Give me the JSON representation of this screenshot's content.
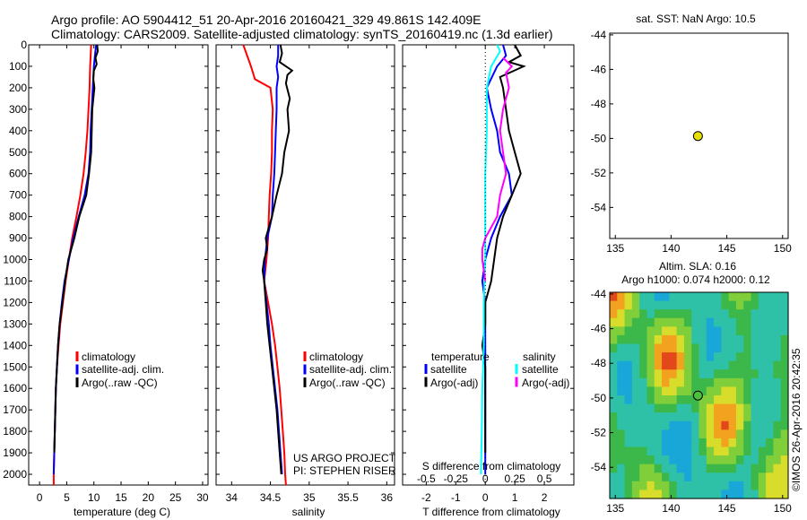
{
  "header": {
    "line1": "Argo profile: AO 5904412_51 20-Apr-2016 20160421_329 49.861S 142.409E",
    "line2": "Climatology: CARS2009. Satellite-adjusted climatology: synTS_20160419.nc (1.3d earlier)"
  },
  "colors": {
    "climatology": "#ff0000",
    "satellite": "#0000ff",
    "argo": "#000000",
    "sal_satellite": "#00ffff",
    "sal_argo": "#ff00ff",
    "argo_marker": "#e6e000"
  },
  "depth_ticks": [
    "0",
    "100",
    "200",
    "300",
    "400",
    "500",
    "600",
    "700",
    "800",
    "900",
    "1000",
    "1100",
    "1200",
    "1300",
    "1400",
    "1500",
    "1600",
    "1700",
    "1800",
    "1900",
    "2000"
  ],
  "chart_data": [
    {
      "type": "line",
      "panel": "temperature",
      "xlabel": "temperature (deg C)",
      "xlim": [
        -2,
        31
      ],
      "ylim": [
        2050,
        0
      ],
      "xticks": [
        "0",
        "5",
        "10",
        "15",
        "20",
        "25",
        "30"
      ],
      "legend": [
        "climatology",
        "satellite-adj. clim.",
        "Argo(..raw -QC)"
      ],
      "series": [
        {
          "name": "climatology",
          "color": "#ff0000",
          "points": [
            [
              9.5,
              0
            ],
            [
              9.4,
              50
            ],
            [
              9.3,
              100
            ],
            [
              9.2,
              200
            ],
            [
              9.0,
              300
            ],
            [
              8.8,
              400
            ],
            [
              8.5,
              500
            ],
            [
              8.1,
              600
            ],
            [
              7.5,
              700
            ],
            [
              6.8,
              800
            ],
            [
              6.0,
              900
            ],
            [
              5.4,
              1000
            ],
            [
              4.8,
              1100
            ],
            [
              4.3,
              1200
            ],
            [
              3.8,
              1300
            ],
            [
              3.5,
              1400
            ],
            [
              3.2,
              1500
            ],
            [
              3.0,
              1600
            ],
            [
              2.9,
              1700
            ],
            [
              2.8,
              1800
            ],
            [
              2.7,
              1900
            ],
            [
              2.6,
              2000
            ],
            [
              2.6,
              2050
            ]
          ]
        },
        {
          "name": "satellite-adj. clim.",
          "color": "#0000ff",
          "points": [
            [
              10.4,
              0
            ],
            [
              10.2,
              50
            ],
            [
              10.0,
              100
            ],
            [
              9.8,
              200
            ],
            [
              9.6,
              300
            ],
            [
              9.4,
              400
            ],
            [
              9.3,
              500
            ],
            [
              9.0,
              600
            ],
            [
              8.3,
              700
            ],
            [
              7.2,
              800
            ],
            [
              6.2,
              900
            ],
            [
              5.4,
              1000
            ],
            [
              4.6,
              1100
            ],
            [
              4.1,
              1200
            ],
            [
              3.7,
              1300
            ],
            [
              3.4,
              1400
            ],
            [
              3.2,
              1500
            ],
            [
              3.0,
              1600
            ],
            [
              2.9,
              1700
            ],
            [
              2.8,
              1800
            ],
            [
              2.7,
              1900
            ],
            [
              2.6,
              2000
            ]
          ]
        },
        {
          "name": "Argo(..raw -QC)",
          "color": "#000000",
          "points": [
            [
              10.6,
              0
            ],
            [
              10.7,
              30
            ],
            [
              10.3,
              60
            ],
            [
              10.5,
              90
            ],
            [
              10.0,
              120
            ],
            [
              9.9,
              160
            ],
            [
              10.1,
              200
            ],
            [
              9.7,
              300
            ],
            [
              9.6,
              400
            ],
            [
              9.5,
              500
            ],
            [
              9.1,
              600
            ],
            [
              8.6,
              700
            ],
            [
              7.3,
              800
            ],
            [
              6.4,
              900
            ],
            [
              5.3,
              1000
            ],
            [
              4.7,
              1100
            ],
            [
              4.2,
              1200
            ],
            [
              3.7,
              1300
            ],
            [
              3.4,
              1400
            ],
            [
              3.2,
              1500
            ],
            [
              3.0,
              1600
            ],
            [
              2.9,
              1700
            ],
            [
              2.8,
              1800
            ],
            [
              2.7,
              1900
            ]
          ]
        }
      ]
    },
    {
      "type": "line",
      "panel": "salinity",
      "xlabel": "salinity",
      "xlim": [
        33.8,
        36.1
      ],
      "ylim": [
        2050,
        0
      ],
      "xticks": [
        "34",
        "34.5",
        "35",
        "35.5",
        "36"
      ],
      "legend": [
        "climatology",
        "satellite-adj. clim.",
        "Argo(..raw -QC)"
      ],
      "annotation": [
        "US ARGO PROJECT",
        "PI: STEPHEN RISER"
      ],
      "series": [
        {
          "name": "climatology",
          "color": "#ff0000",
          "points": [
            [
              34.15,
              0
            ],
            [
              34.2,
              50
            ],
            [
              34.25,
              100
            ],
            [
              34.3,
              160
            ],
            [
              34.5,
              200
            ],
            [
              34.53,
              300
            ],
            [
              34.52,
              400
            ],
            [
              34.52,
              500
            ],
            [
              34.51,
              600
            ],
            [
              34.49,
              700
            ],
            [
              34.48,
              800
            ],
            [
              34.47,
              900
            ],
            [
              34.45,
              1000
            ],
            [
              34.42,
              1100
            ],
            [
              34.47,
              1200
            ],
            [
              34.52,
              1300
            ],
            [
              34.56,
              1400
            ],
            [
              34.59,
              1500
            ],
            [
              34.62,
              1600
            ],
            [
              34.64,
              1700
            ],
            [
              34.66,
              1800
            ],
            [
              34.68,
              1900
            ],
            [
              34.69,
              2000
            ],
            [
              34.7,
              2050
            ]
          ]
        },
        {
          "name": "satellite-adj. clim.",
          "color": "#0000ff",
          "points": [
            [
              34.6,
              0
            ],
            [
              34.6,
              50
            ],
            [
              34.58,
              100
            ],
            [
              34.6,
              150
            ],
            [
              34.58,
              200
            ],
            [
              34.58,
              300
            ],
            [
              34.57,
              400
            ],
            [
              34.56,
              500
            ],
            [
              34.55,
              600
            ],
            [
              34.53,
              700
            ],
            [
              34.52,
              800
            ],
            [
              34.46,
              900
            ],
            [
              34.43,
              1000
            ],
            [
              34.42,
              1100
            ],
            [
              34.45,
              1200
            ],
            [
              34.48,
              1300
            ],
            [
              34.5,
              1400
            ],
            [
              34.53,
              1500
            ],
            [
              34.56,
              1600
            ],
            [
              34.59,
              1700
            ],
            [
              34.61,
              1800
            ],
            [
              34.63,
              1900
            ],
            [
              34.65,
              2000
            ]
          ]
        },
        {
          "name": "Argo(..raw -QC)",
          "color": "#000000",
          "points": [
            [
              34.63,
              0
            ],
            [
              34.65,
              40
            ],
            [
              34.62,
              80
            ],
            [
              34.78,
              120
            ],
            [
              34.72,
              140
            ],
            [
              34.7,
              180
            ],
            [
              34.75,
              250
            ],
            [
              34.72,
              300
            ],
            [
              34.74,
              400
            ],
            [
              34.68,
              500
            ],
            [
              34.65,
              600
            ],
            [
              34.58,
              700
            ],
            [
              34.52,
              800
            ],
            [
              34.44,
              900
            ],
            [
              34.46,
              950
            ],
            [
              34.42,
              1000
            ],
            [
              34.4,
              1050
            ],
            [
              34.42,
              1100
            ],
            [
              34.44,
              1200
            ],
            [
              34.46,
              1300
            ],
            [
              34.49,
              1400
            ],
            [
              34.52,
              1500
            ],
            [
              34.55,
              1600
            ],
            [
              34.58,
              1700
            ],
            [
              34.6,
              1800
            ],
            [
              34.62,
              1900
            ],
            [
              34.64,
              2000
            ]
          ]
        }
      ]
    },
    {
      "type": "line",
      "panel": "difference",
      "xlabel": "T difference from climatology",
      "xlabel_top": "S difference from climatology",
      "xlim": [
        -2.8,
        3.0
      ],
      "ylim": [
        2050,
        0
      ],
      "xticks": [
        "-2",
        "-1",
        "0",
        "1",
        "2"
      ],
      "sticks": [
        "-0.5",
        "-0.25",
        "0",
        "0.25",
        "0.5"
      ],
      "legend_headers": [
        "temperature",
        "salinity"
      ],
      "legend_left": [
        "satellite",
        "Argo(-adj)"
      ],
      "legend_right": [
        "satellite",
        "Argo(-adj)"
      ],
      "series": [
        {
          "name": "T satellite",
          "color": "#0000ff",
          "points": [
            [
              0.6,
              0
            ],
            [
              0.7,
              50
            ],
            [
              0.4,
              100
            ],
            [
              0.05,
              200
            ],
            [
              0.2,
              300
            ],
            [
              0.4,
              400
            ],
            [
              0.5,
              500
            ],
            [
              0.8,
              600
            ],
            [
              0.9,
              700
            ],
            [
              0.5,
              800
            ],
            [
              0.2,
              900
            ],
            [
              0.0,
              1000
            ],
            [
              -0.1,
              1100
            ],
            [
              0.0,
              1200
            ],
            [
              0.0,
              1300
            ],
            [
              0.0,
              1400
            ],
            [
              0.0,
              1500
            ],
            [
              0.0,
              1600
            ],
            [
              0.0,
              1700
            ],
            [
              0.0,
              1800
            ],
            [
              0.0,
              1900
            ],
            [
              0.0,
              2000
            ]
          ]
        },
        {
          "name": "T Argo(-adj)",
          "color": "#000000",
          "points": [
            [
              1.0,
              0
            ],
            [
              1.2,
              50
            ],
            [
              0.8,
              80
            ],
            [
              1.3,
              100
            ],
            [
              0.5,
              150
            ],
            [
              0.6,
              200
            ],
            [
              0.7,
              300
            ],
            [
              0.8,
              400
            ],
            [
              1.0,
              500
            ],
            [
              1.2,
              600
            ],
            [
              0.9,
              700
            ],
            [
              0.6,
              800
            ],
            [
              0.4,
              900
            ],
            [
              0.3,
              1000
            ],
            [
              0.2,
              1100
            ],
            [
              0.0,
              1200
            ],
            [
              0.0,
              1300
            ],
            [
              -0.1,
              1400
            ],
            [
              0.0,
              1500
            ],
            [
              0.0,
              1600
            ],
            [
              0.0,
              1700
            ],
            [
              0.0,
              1800
            ],
            [
              0.0,
              1900
            ]
          ]
        },
        {
          "name": "S satellite",
          "color": "#00ffff",
          "points": [
            [
              0.4,
              0
            ],
            [
              0.5,
              30
            ],
            [
              0.2,
              100
            ],
            [
              0.05,
              200
            ],
            [
              0.05,
              400
            ],
            [
              0.0,
              600
            ],
            [
              0.0,
              800
            ],
            [
              0.0,
              1000
            ],
            [
              -0.05,
              1200
            ],
            [
              -0.05,
              1400
            ],
            [
              -0.1,
              1600
            ],
            [
              -0.12,
              1800
            ],
            [
              -0.15,
              2000
            ]
          ]
        },
        {
          "name": "S Argo(-adj)",
          "color": "#ff00ff",
          "points": [
            [
              0.6,
              60
            ],
            [
              0.9,
              100
            ],
            [
              0.7,
              130
            ],
            [
              0.8,
              200
            ],
            [
              0.6,
              300
            ],
            [
              0.5,
              400
            ],
            [
              0.6,
              500
            ],
            [
              0.7,
              600
            ],
            [
              0.5,
              700
            ],
            [
              0.4,
              800
            ],
            [
              0.0,
              900
            ],
            [
              -0.1,
              950
            ],
            [
              -0.1,
              1000
            ],
            [
              0.0,
              1100
            ]
          ]
        }
      ]
    },
    {
      "type": "scatter",
      "panel": "sst",
      "title": "sat. SST: NaN Argo: 10.5",
      "xlim": [
        134.5,
        150.5
      ],
      "ylim": [
        -55.8,
        -43.9
      ],
      "xticks": [
        "135",
        "140",
        "145",
        "150"
      ],
      "yticks": [
        "-44",
        "-46",
        "-48",
        "-50",
        "-52",
        "-54"
      ],
      "points": [
        [
          142.409,
          -49.861
        ]
      ]
    },
    {
      "type": "heatmap",
      "panel": "sla",
      "title1": "Altim. SLA: 0.16",
      "title2": "Argo h1000: 0.074 h2000: 0.12",
      "xlim": [
        134.5,
        150.5
      ],
      "ylim": [
        -55.8,
        -43.9
      ],
      "xticks": [
        "135",
        "140",
        "145",
        "150"
      ],
      "yticks": [
        "-44",
        "-46",
        "-48",
        "-50",
        "-52",
        "-54"
      ],
      "points": [
        [
          142.409,
          -49.861
        ]
      ],
      "credit": "©IMOS 26-Apr-2016 20:42:35"
    }
  ]
}
